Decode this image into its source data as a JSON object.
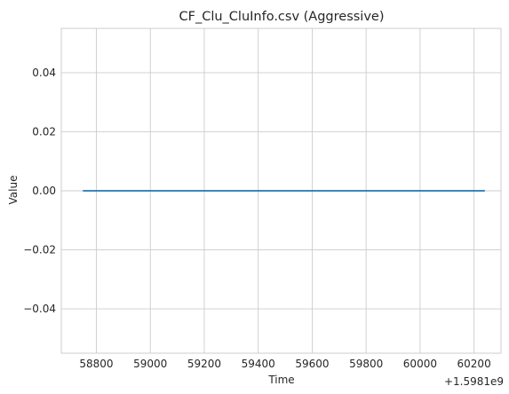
{
  "chart_data": {
    "type": "line",
    "title": "CF_Clu_CluInfo.csv (Aggressive)",
    "xlabel": "Time",
    "ylabel": "Value",
    "x_offset_label": "+1.5981e9",
    "xlim": [
      58670,
      60300
    ],
    "ylim": [
      -0.055,
      0.055
    ],
    "x_ticks": [
      58800,
      59000,
      59200,
      59400,
      59600,
      59800,
      60000,
      60200
    ],
    "x_tick_labels": [
      "58800",
      "59000",
      "59200",
      "59400",
      "59600",
      "59800",
      "60000",
      "60200"
    ],
    "y_ticks": [
      -0.04,
      -0.02,
      0.0,
      0.02,
      0.04
    ],
    "y_tick_labels": [
      "−0.04",
      "−0.02",
      "0.00",
      "0.02",
      "0.04"
    ],
    "grid": true,
    "series": [
      {
        "color": "#1f77b4",
        "x": [
          58750,
          60240
        ],
        "y": [
          0.0,
          0.0
        ]
      }
    ]
  }
}
